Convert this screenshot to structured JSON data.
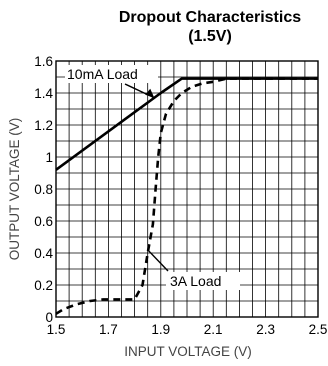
{
  "chart_data": {
    "type": "line",
    "title": "Dropout Characteristics",
    "subtitle": "(1.5V)",
    "xlabel": "INPUT VOLTAGE (V)",
    "ylabel": "OUTPUT VOLTAGE (V)",
    "xlim": [
      1.5,
      2.5
    ],
    "ylim": [
      0,
      1.6
    ],
    "xticks": [
      "1.5",
      "1.7",
      "1.9",
      "2.1",
      "2.3",
      "2.5"
    ],
    "yticks": [
      "0",
      "0.2",
      "0.4",
      "0.6",
      "0.8",
      "1",
      "1.2",
      "1.4",
      "1.6"
    ],
    "grid": true,
    "annotations": [
      {
        "text": "10mA Load",
        "series": 0
      },
      {
        "text": "3A Load",
        "series": 1
      }
    ],
    "series": [
      {
        "name": "10mA Load",
        "style": "solid",
        "x": [
          1.5,
          1.9,
          1.98,
          2.5
        ],
        "y": [
          0.92,
          1.4,
          1.49,
          1.49
        ]
      },
      {
        "name": "3A Load",
        "style": "dashed",
        "x": [
          1.5,
          1.53,
          1.58,
          1.63,
          1.68,
          1.72,
          1.76,
          1.8,
          1.83,
          1.85,
          1.87,
          1.88,
          1.89,
          1.9,
          1.92,
          1.95,
          1.98,
          2.02,
          2.06,
          2.1,
          2.15,
          2.5
        ],
        "y": [
          0.02,
          0.05,
          0.08,
          0.1,
          0.11,
          0.11,
          0.11,
          0.11,
          0.2,
          0.4,
          0.58,
          0.8,
          1.0,
          1.15,
          1.27,
          1.35,
          1.4,
          1.44,
          1.46,
          1.47,
          1.49,
          1.49
        ]
      }
    ]
  }
}
